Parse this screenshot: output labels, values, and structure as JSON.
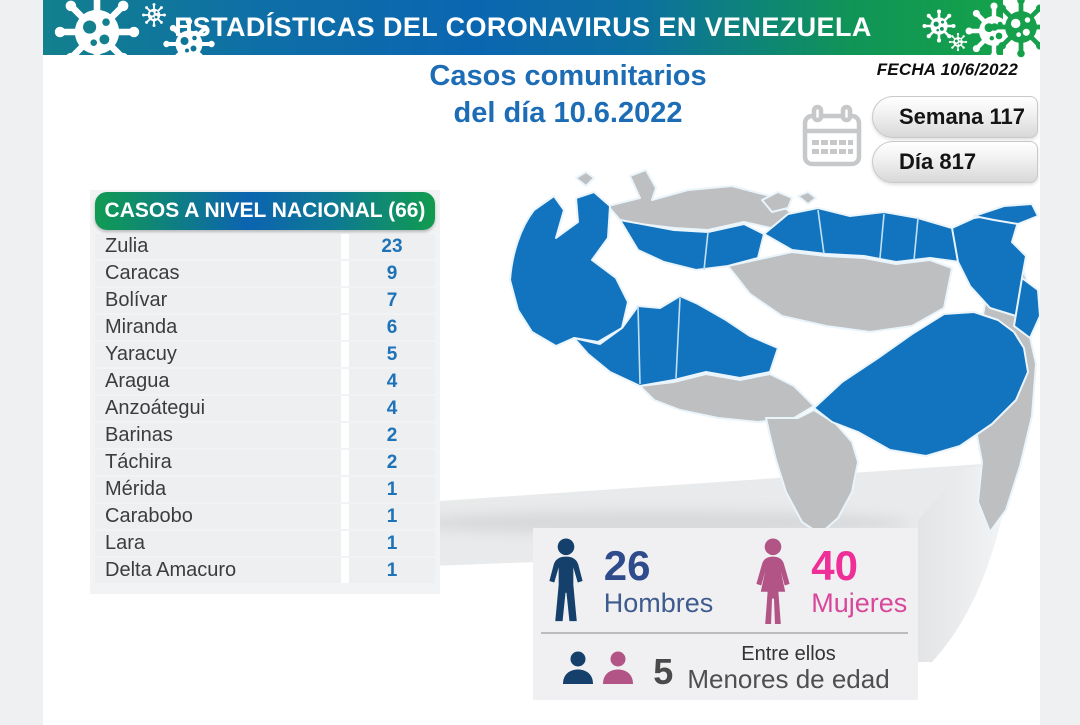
{
  "banner": {
    "title": "ESTADÍSTICAS DEL CORONAVIRUS EN VENEZUELA"
  },
  "heading": {
    "line1": "Casos comunitarios",
    "line2": "del día 10.6.2022"
  },
  "date_label": "FECHA 10/6/2022",
  "badges": {
    "week": "Semana 117",
    "day": "Día 817"
  },
  "table": {
    "header": "CASOS A NIVEL NACIONAL  (66)",
    "total": 66,
    "rows": [
      {
        "state": "Zulia",
        "cases": "23"
      },
      {
        "state": "Caracas",
        "cases": "9"
      },
      {
        "state": "Bolívar",
        "cases": "7"
      },
      {
        "state": "Miranda",
        "cases": "6"
      },
      {
        "state": "Yaracuy",
        "cases": "5"
      },
      {
        "state": "Aragua",
        "cases": "4"
      },
      {
        "state": "Anzoátegui",
        "cases": "4"
      },
      {
        "state": "Barinas",
        "cases": "2"
      },
      {
        "state": "Táchira",
        "cases": "2"
      },
      {
        "state": "Mérida",
        "cases": "1"
      },
      {
        "state": "Carabobo",
        "cases": "1"
      },
      {
        "state": "Lara",
        "cases": "1"
      },
      {
        "state": "Delta Amacuro",
        "cases": "1"
      }
    ]
  },
  "stats": {
    "men_value": "26",
    "men_label": "Hombres",
    "women_value": "40",
    "women_label": "Mujeres",
    "minors_intro": "Entre ellos",
    "minors_value": "5",
    "minors_label": "Menores de edad"
  },
  "icons": [
    "virus-icon",
    "calendar-icon",
    "male-figure-icon",
    "female-figure-icon",
    "male-bust-icon",
    "female-bust-icon"
  ],
  "colors": {
    "heading_blue": "#1C6CB6",
    "number_blue": "#1E73B8",
    "map_blue": "#1273BE",
    "map_gray": "#BDBFC1",
    "men_navy": "#15406B",
    "men_text": "#2E4C8C",
    "women_mauve": "#B25586",
    "women_pink": "#EE2F97",
    "banner_teal": "#12808D",
    "banner_blue": "#0B66B1",
    "banner_green": "#14A24A"
  }
}
